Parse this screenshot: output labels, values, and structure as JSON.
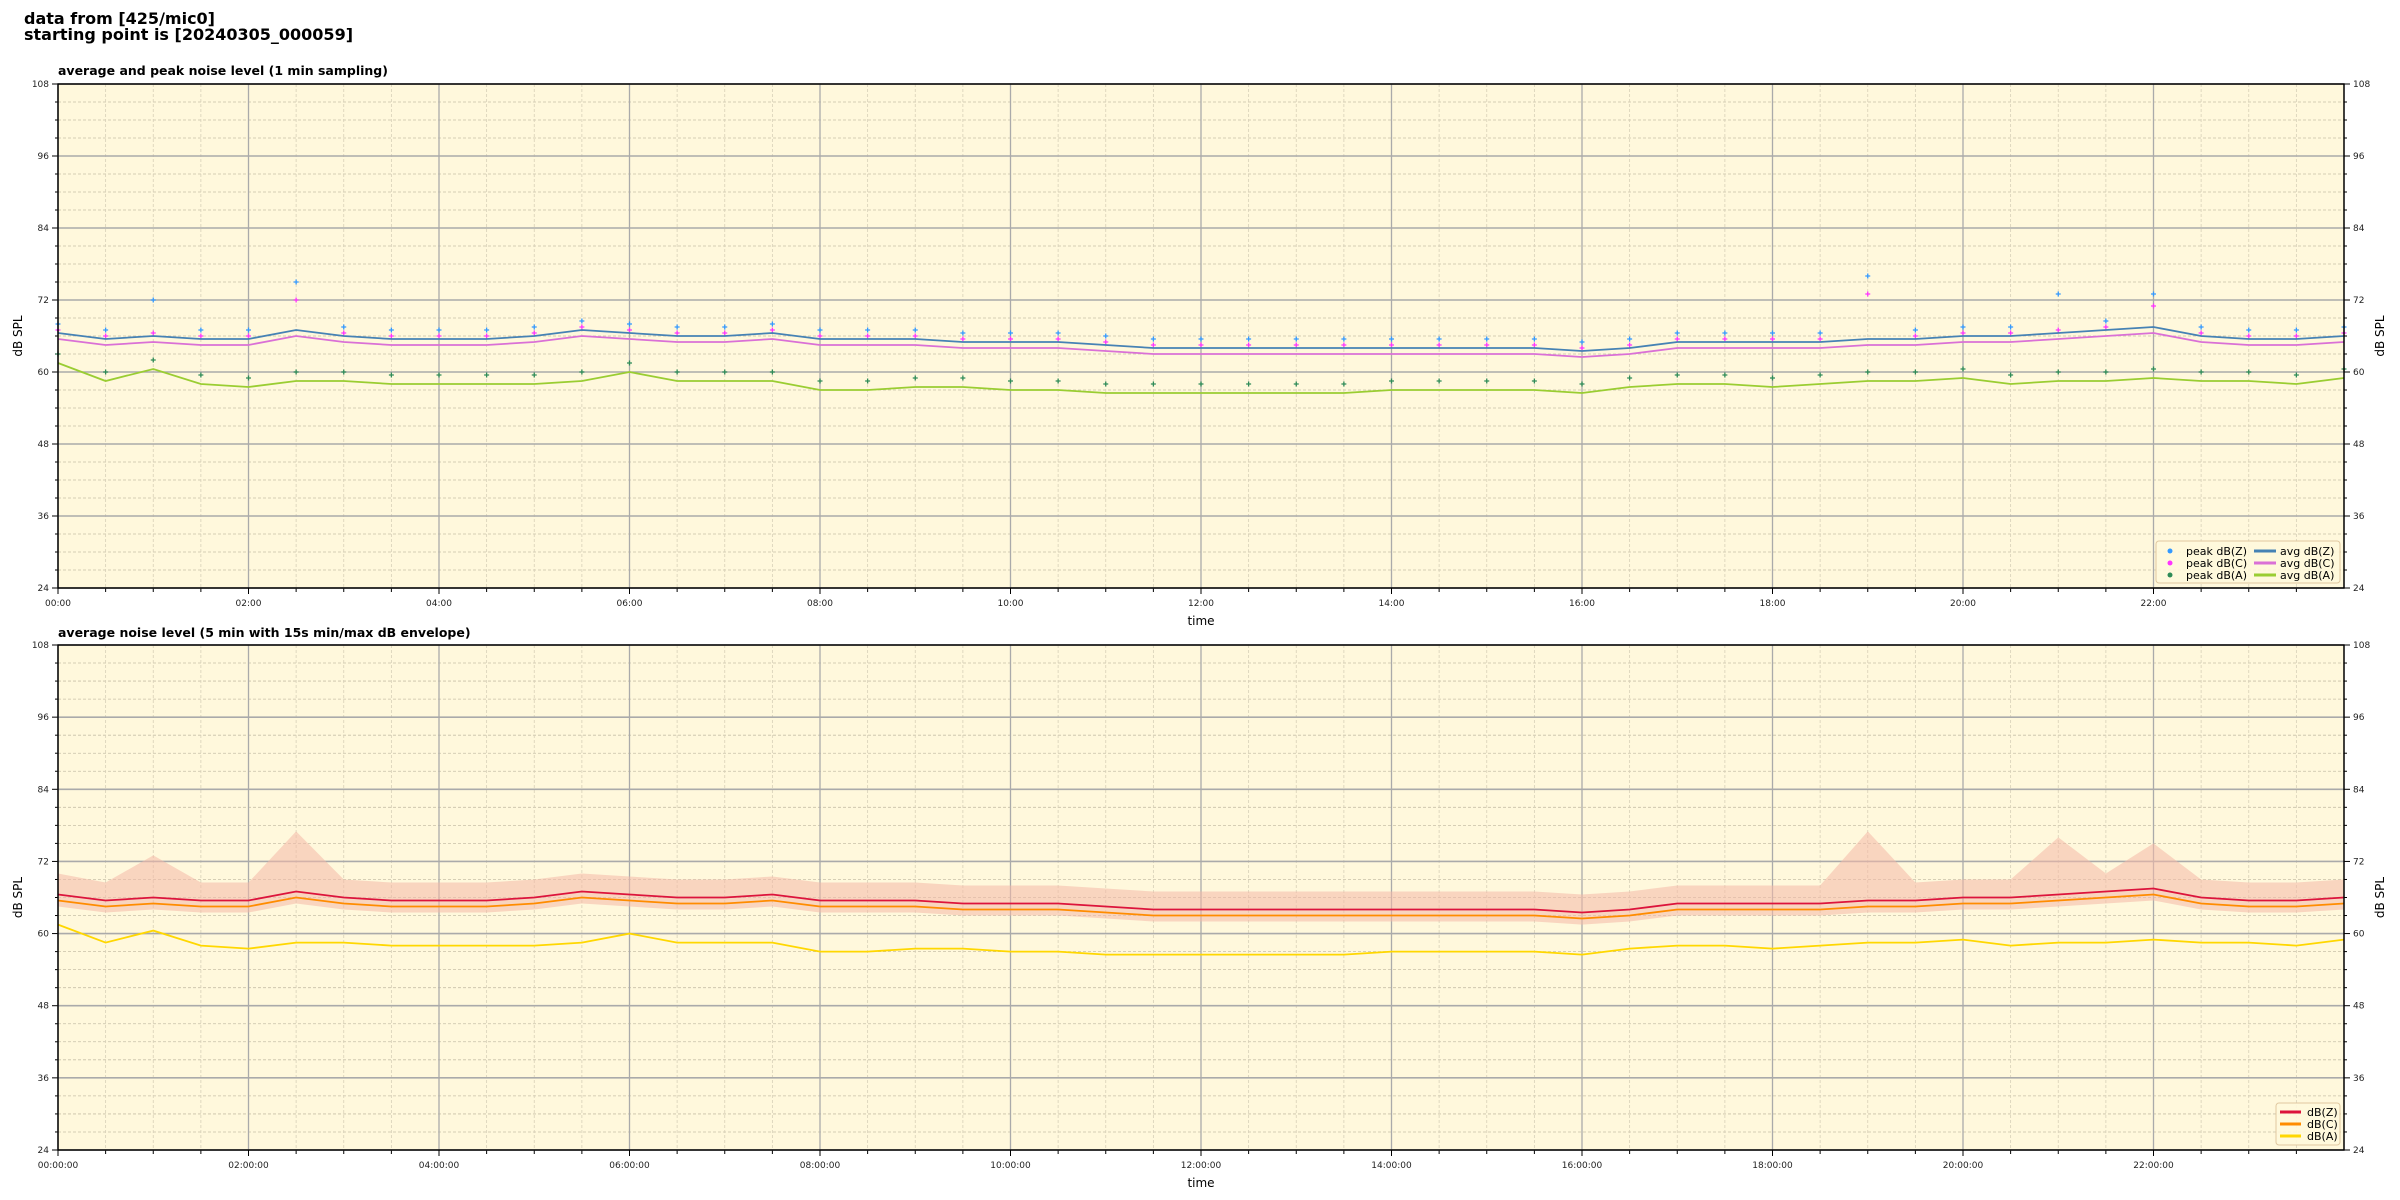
{
  "header": {
    "line1": "data from [425/mic0]",
    "line2": "starting point is [20240305_000059]"
  },
  "chart_data": [
    {
      "type": "scatter+line",
      "title": "average and peak noise level (1 min sampling)",
      "xlabel": "time",
      "ylabel": "dB SPL",
      "xlim_hours": [
        0,
        24
      ],
      "ylim": [
        24,
        108
      ],
      "yticks": [
        24,
        36,
        48,
        60,
        72,
        84,
        96,
        108
      ],
      "xtick_labels": [
        "00:00",
        "02:00",
        "04:00",
        "06:00",
        "08:00",
        "10:00",
        "12:00",
        "14:00",
        "16:00",
        "18:00",
        "20:00",
        "22:00"
      ],
      "grid": true,
      "background": "#fff8dc",
      "legend_placement": "lower-right",
      "x_hours_step": 0.5,
      "series": [
        {
          "name": "peak dB(Z)",
          "kind": "scatter",
          "color": "#3399ff",
          "values": [
            68,
            67,
            72,
            67,
            67,
            75,
            67.5,
            67,
            67,
            67,
            67.5,
            68.5,
            68,
            67.5,
            67.5,
            68,
            67,
            67,
            67,
            66.5,
            66.5,
            66.5,
            66,
            65.5,
            65.5,
            65.5,
            65.5,
            65.5,
            65.5,
            65.5,
            65.5,
            65.5,
            65,
            65.5,
            66.5,
            66.5,
            66.5,
            66.5,
            76,
            67,
            67.5,
            67.5,
            73,
            68.5,
            73,
            67.5,
            67,
            67,
            67.5
          ]
        },
        {
          "name": "peak dB(C)",
          "kind": "scatter",
          "color": "#ff33ff",
          "values": [
            67,
            66,
            66.5,
            66,
            66,
            72,
            66.5,
            66,
            66,
            66,
            66.5,
            67.5,
            67,
            66.5,
            66.5,
            67,
            66,
            66,
            66,
            65.5,
            65.5,
            65.5,
            65,
            64.5,
            64.5,
            64.5,
            64.5,
            64.5,
            64.5,
            64.5,
            64.5,
            64.5,
            64,
            64.5,
            65.5,
            65.5,
            65.5,
            65.5,
            73,
            66,
            66.5,
            66.5,
            67,
            67.5,
            71,
            66.5,
            66,
            66,
            66.5
          ]
        },
        {
          "name": "peak dB(A)",
          "kind": "scatter",
          "color": "#2e8b57",
          "values": [
            63,
            60,
            62,
            59.5,
            59,
            60,
            60,
            59.5,
            59.5,
            59.5,
            59.5,
            60,
            61.5,
            60,
            60,
            60,
            58.5,
            58.5,
            59,
            59,
            58.5,
            58.5,
            58,
            58,
            58,
            58,
            58,
            58,
            58.5,
            58.5,
            58.5,
            58.5,
            58,
            59,
            59.5,
            59.5,
            59,
            59.5,
            60,
            60,
            60.5,
            59.5,
            60,
            60,
            60.5,
            60,
            60,
            59.5,
            60.5
          ]
        },
        {
          "name": "avg dB(Z)",
          "kind": "line",
          "color": "#4682b4",
          "values": [
            66.5,
            65.5,
            66,
            65.5,
            65.5,
            67,
            66,
            65.5,
            65.5,
            65.5,
            66,
            67,
            66.5,
            66,
            66,
            66.5,
            65.5,
            65.5,
            65.5,
            65,
            65,
            65,
            64.5,
            64,
            64,
            64,
            64,
            64,
            64,
            64,
            64,
            64,
            63.5,
            64,
            65,
            65,
            65,
            65,
            65.5,
            65.5,
            66,
            66,
            66.5,
            67,
            67.5,
            66,
            65.5,
            65.5,
            66
          ]
        },
        {
          "name": "avg dB(C)",
          "kind": "line",
          "color": "#da70d6",
          "values": [
            65.5,
            64.5,
            65,
            64.5,
            64.5,
            66,
            65,
            64.5,
            64.5,
            64.5,
            65,
            66,
            65.5,
            65,
            65,
            65.5,
            64.5,
            64.5,
            64.5,
            64,
            64,
            64,
            63.5,
            63,
            63,
            63,
            63,
            63,
            63,
            63,
            63,
            63,
            62.5,
            63,
            64,
            64,
            64,
            64,
            64.5,
            64.5,
            65,
            65,
            65.5,
            66,
            66.5,
            65,
            64.5,
            64.5,
            65
          ]
        },
        {
          "name": "avg dB(A)",
          "kind": "line",
          "color": "#9acd32",
          "values": [
            61.5,
            58.5,
            60.5,
            58,
            57.5,
            58.5,
            58.5,
            58,
            58,
            58,
            58,
            58.5,
            60,
            58.5,
            58.5,
            58.5,
            57,
            57,
            57.5,
            57.5,
            57,
            57,
            56.5,
            56.5,
            56.5,
            56.5,
            56.5,
            56.5,
            57,
            57,
            57,
            57,
            56.5,
            57.5,
            58,
            58,
            57.5,
            58,
            58.5,
            58.5,
            59,
            58,
            58.5,
            58.5,
            59,
            58.5,
            58.5,
            58,
            59
          ]
        }
      ]
    },
    {
      "type": "line",
      "title": "average noise level (5 min with 15s min/max dB envelope)",
      "xlabel": "time",
      "ylabel": "dB SPL",
      "xlim_hours": [
        0,
        24
      ],
      "ylim": [
        24,
        108
      ],
      "yticks": [
        24,
        36,
        48,
        60,
        72,
        84,
        96,
        108
      ],
      "xtick_labels": [
        "00:00:00",
        "02:00:00",
        "04:00:00",
        "06:00:00",
        "08:00:00",
        "10:00:00",
        "12:00:00",
        "14:00:00",
        "16:00:00",
        "18:00:00",
        "20:00:00",
        "22:00:00"
      ],
      "grid": true,
      "background": "#fff8dc",
      "legend_placement": "lower-right",
      "x_hours_step": 0.5,
      "envelope": {
        "color": "#f4b8a8",
        "max": [
          70,
          68.5,
          73,
          68.5,
          68.5,
          77,
          69,
          68.5,
          68.5,
          68.5,
          69,
          70,
          69.5,
          69,
          69,
          69.5,
          68.5,
          68.5,
          68.5,
          68,
          68,
          68,
          67.5,
          67,
          67,
          67,
          67,
          67,
          67,
          67,
          67,
          67,
          66.5,
          67,
          68,
          68,
          68,
          68,
          77,
          68.5,
          69,
          69,
          76,
          70,
          75,
          69,
          68.5,
          68.5,
          69
        ],
        "min": [
          64.5,
          63.5,
          64,
          63.5,
          63.5,
          65,
          64,
          63.5,
          63.5,
          63.5,
          64,
          65,
          64.5,
          64,
          64,
          64.5,
          63.5,
          63.5,
          63.5,
          63,
          63,
          63,
          62.5,
          62,
          62,
          62,
          62,
          62,
          62,
          62,
          62,
          62,
          61.5,
          62,
          63,
          63,
          63,
          63,
          63.5,
          63.5,
          64,
          64,
          64.5,
          65,
          65.5,
          64,
          63.5,
          63.5,
          64
        ]
      },
      "series": [
        {
          "name": "dB(Z)",
          "color": "#dc143c",
          "values": [
            66.5,
            65.5,
            66,
            65.5,
            65.5,
            67,
            66,
            65.5,
            65.5,
            65.5,
            66,
            67,
            66.5,
            66,
            66,
            66.5,
            65.5,
            65.5,
            65.5,
            65,
            65,
            65,
            64.5,
            64,
            64,
            64,
            64,
            64,
            64,
            64,
            64,
            64,
            63.5,
            64,
            65,
            65,
            65,
            65,
            65.5,
            65.5,
            66,
            66,
            66.5,
            67,
            67.5,
            66,
            65.5,
            65.5,
            66
          ]
        },
        {
          "name": "dB(C)",
          "color": "#ff8c00",
          "values": [
            65.5,
            64.5,
            65,
            64.5,
            64.5,
            66,
            65,
            64.5,
            64.5,
            64.5,
            65,
            66,
            65.5,
            65,
            65,
            65.5,
            64.5,
            64.5,
            64.5,
            64,
            64,
            64,
            63.5,
            63,
            63,
            63,
            63,
            63,
            63,
            63,
            63,
            63,
            62.5,
            63,
            64,
            64,
            64,
            64,
            64.5,
            64.5,
            65,
            65,
            65.5,
            66,
            66.5,
            65,
            64.5,
            64.5,
            65
          ]
        },
        {
          "name": "dB(A)",
          "color": "#ffd700",
          "values": [
            61.5,
            58.5,
            60.5,
            58,
            57.5,
            58.5,
            58.5,
            58,
            58,
            58,
            58,
            58.5,
            60,
            58.5,
            58.5,
            58.5,
            57,
            57,
            57.5,
            57.5,
            57,
            57,
            56.5,
            56.5,
            56.5,
            56.5,
            56.5,
            56.5,
            57,
            57,
            57,
            57,
            56.5,
            57.5,
            58,
            58,
            57.5,
            58,
            58.5,
            58.5,
            59,
            58,
            58.5,
            58.5,
            59,
            58.5,
            58.5,
            58,
            59
          ]
        }
      ]
    }
  ]
}
